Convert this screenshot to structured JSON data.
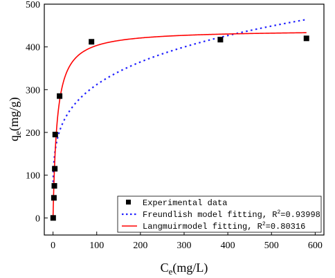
{
  "chart_data": {
    "type": "scatter",
    "xlabel": {
      "base": "C",
      "sub": "e",
      "rest": "(mg/L)"
    },
    "ylabel": {
      "base": "q",
      "sub": "e",
      "rest": "(mg/g)"
    },
    "xlim": [
      -20,
      620
    ],
    "ylim": [
      -40,
      500
    ],
    "xticks": [
      0,
      100,
      200,
      300,
      400,
      500,
      600
    ],
    "yticks": [
      0,
      100,
      200,
      300,
      400,
      500
    ],
    "grid": false,
    "legend_position": "bottom-right",
    "series": [
      {
        "name": "Experimental data",
        "kind": "scatter",
        "marker": "square",
        "color": "#000000",
        "x": [
          0.3,
          2,
          3,
          4,
          5,
          15,
          88,
          383,
          580
        ],
        "y": [
          0,
          47,
          75,
          115,
          195,
          285,
          412,
          417,
          420
        ]
      },
      {
        "name": "Freundlish model fitting",
        "r2_prefix": "R",
        "r2_sup": "2",
        "r2_value": "=0.93998",
        "kind": "line",
        "style": "dotted",
        "color": "#1f1fff",
        "model": "freundlich",
        "params": {
          "kf": 110,
          "n": 4.42
        },
        "x_range": [
          0.3,
          580
        ]
      },
      {
        "name": "Langmuirmodel fitting",
        "r2_prefix": "R",
        "r2_sup": "2",
        "r2_value": "=0.80316",
        "kind": "line",
        "style": "solid",
        "color": "#ff0000",
        "model": "langmuir",
        "params": {
          "qm": 440,
          "kl": 0.11
        },
        "x_range": [
          0,
          580
        ]
      }
    ]
  }
}
